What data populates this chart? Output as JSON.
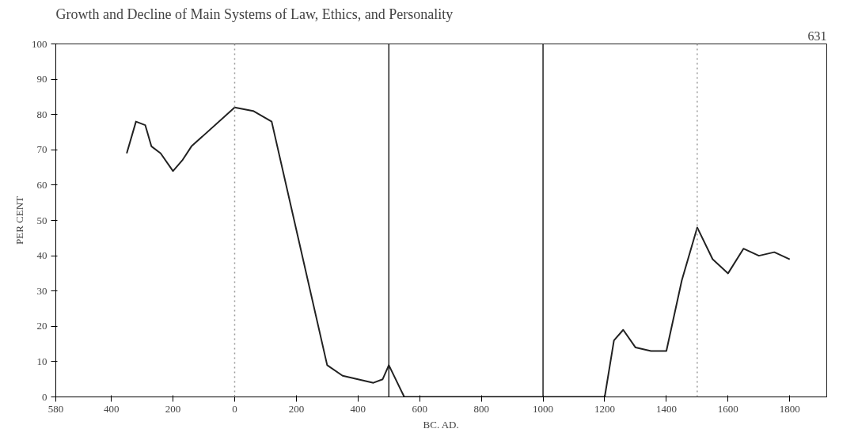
{
  "chart_data": {
    "type": "line",
    "title": "Growth and Decline of Main Systems of Law, Ethics, and Personality",
    "annotations": [
      "631"
    ],
    "xlabel": "BC. AD.",
    "ylabel": "PER CENT",
    "x": [
      -350,
      -320,
      -290,
      -270,
      -240,
      -200,
      -170,
      -140,
      0,
      60,
      120,
      300,
      350,
      400,
      450,
      480,
      500,
      550,
      700,
      900,
      1100,
      1200,
      1230,
      1260,
      1300,
      1350,
      1400,
      1450,
      1500,
      1550,
      1600,
      1650,
      1700,
      1750,
      1800
    ],
    "series": [
      {
        "color": "#222222",
        "values": [
          69,
          78,
          77,
          71,
          69,
          64,
          67,
          71,
          82,
          81,
          78,
          9,
          6,
          5,
          4,
          5,
          9,
          0,
          0,
          0,
          0,
          0,
          16,
          19,
          14,
          13,
          13,
          33,
          48,
          39,
          35,
          42,
          40,
          41,
          39
        ]
      }
    ],
    "xlim": [
      -580,
      1920
    ],
    "xticks": [
      {
        "value": -580,
        "label": "580"
      },
      {
        "value": -400,
        "label": "400"
      },
      {
        "value": -200,
        "label": "200"
      },
      0,
      200,
      400,
      600,
      800,
      1000,
      1200,
      1400,
      1600,
      1800
    ],
    "ylim": [
      0,
      100
    ],
    "yticks": [
      0,
      10,
      20,
      30,
      40,
      50,
      60,
      70,
      80,
      90,
      100
    ],
    "ref_lines": [
      {
        "axis": "x",
        "value": 0,
        "color": "#999999",
        "line_style": "dotted"
      },
      {
        "axis": "x",
        "value": 500,
        "color": "#222222",
        "line_style": "solid"
      },
      {
        "axis": "x",
        "value": 1000,
        "color": "#222222",
        "line_style": "solid"
      },
      {
        "axis": "x",
        "value": 1500,
        "color": "#999999",
        "line_style": "dotted"
      }
    ],
    "grid": false,
    "marker": "none",
    "line_style": "solid"
  }
}
